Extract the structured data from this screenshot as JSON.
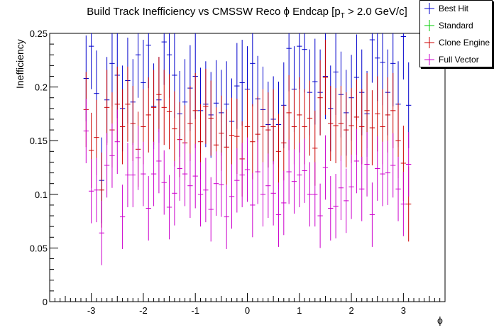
{
  "chart_data": {
    "type": "scatter",
    "title": "Build Track Inefficiency vs CMSSW Reco ϕ Endcap [p",
    "title_sub": "T",
    "title_end": " > 2.0 GeV/c]",
    "xlabel": "ϕ",
    "ylabel": "Inefficiency",
    "xlim": [
      -3.8,
      3.8
    ],
    "ylim": [
      0,
      0.25
    ],
    "xticks": [
      -3,
      -2,
      -1,
      0,
      1,
      2,
      3
    ],
    "xtick_labels": [
      "-3",
      "-2",
      "-1",
      "0",
      "1",
      "2",
      "3"
    ],
    "yticks": [
      0,
      0.05,
      0.1,
      0.15,
      0.2,
      0.25
    ],
    "ytick_labels": [
      "0",
      "0.05",
      "0.1",
      "0.15",
      "0.2",
      "0.25"
    ],
    "grid": false,
    "legend_position": "top-right",
    "x": [
      -3.1,
      -3.0,
      -2.9,
      -2.8,
      -2.7,
      -2.6,
      -2.5,
      -2.4,
      -2.3,
      -2.2,
      -2.1,
      -2.0,
      -1.9,
      -1.8,
      -1.7,
      -1.6,
      -1.5,
      -1.4,
      -1.3,
      -1.2,
      -1.1,
      -1.0,
      -0.9,
      -0.8,
      -0.7,
      -0.6,
      -0.5,
      -0.4,
      -0.3,
      -0.2,
      -0.1,
      0.0,
      0.1,
      0.2,
      0.3,
      0.4,
      0.5,
      0.6,
      0.7,
      0.8,
      0.9,
      1.0,
      1.1,
      1.2,
      1.3,
      1.4,
      1.5,
      1.6,
      1.7,
      1.8,
      1.9,
      2.0,
      2.1,
      2.2,
      2.3,
      2.4,
      2.5,
      2.6,
      2.7,
      2.8,
      2.9,
      3.0,
      3.1
    ],
    "series": [
      {
        "name": "Best Hit",
        "color": "#0000cc",
        "values": [
          0.208,
          0.238,
          0.194,
          0.113,
          0.188,
          0.222,
          0.211,
          0.18,
          0.206,
          0.186,
          0.23,
          0.204,
          0.239,
          0.182,
          0.188,
          0.242,
          0.23,
          0.211,
          0.175,
          0.186,
          0.199,
          0.21,
          0.178,
          0.184,
          0.174,
          0.185,
          0.176,
          0.184,
          0.168,
          0.201,
          0.204,
          0.198,
          0.222,
          0.189,
          0.179,
          0.165,
          0.17,
          0.165,
          0.183,
          0.236,
          0.198,
          0.238,
          0.235,
          0.195,
          0.205,
          0.195,
          0.21,
          0.18,
          0.214,
          0.193,
          0.176,
          0.19,
          0.209,
          0.195,
          0.175,
          0.244,
          0.227,
          0.223,
          0.195,
          0.222,
          0.184,
          0.247,
          0.183
        ],
        "errors": [
          0.04,
          0.04,
          0.04,
          0.04,
          0.04,
          0.04,
          0.04,
          0.04,
          0.04,
          0.04,
          0.04,
          0.04,
          0.04,
          0.04,
          0.04,
          0.04,
          0.04,
          0.04,
          0.04,
          0.04,
          0.04,
          0.04,
          0.04,
          0.04,
          0.04,
          0.04,
          0.04,
          0.04,
          0.04,
          0.04,
          0.04,
          0.04,
          0.04,
          0.04,
          0.04,
          0.04,
          0.04,
          0.04,
          0.04,
          0.04,
          0.04,
          0.04,
          0.04,
          0.04,
          0.04,
          0.04,
          0.04,
          0.04,
          0.04,
          0.04,
          0.04,
          0.04,
          0.04,
          0.04,
          0.04,
          0.04,
          0.04,
          0.04,
          0.04,
          0.04,
          0.04,
          0.04,
          0.04
        ]
      },
      {
        "name": "Standard",
        "color": "#00cc00",
        "values": [],
        "errors": []
      },
      {
        "name": "Clone Engine",
        "color": "#cc0000",
        "values": [
          0.179,
          0.141,
          0.153,
          0.104,
          0.181,
          0.16,
          0.184,
          0.163,
          0.184,
          0.166,
          0.142,
          0.163,
          0.174,
          0.181,
          0.193,
          0.181,
          0.177,
          0.161,
          0.151,
          0.148,
          0.166,
          0.178,
          0.149,
          0.182,
          0.171,
          0.146,
          0.157,
          0.144,
          0.155,
          0.154,
          0.133,
          0.163,
          0.149,
          0.156,
          0.163,
          0.16,
          0.163,
          0.14,
          0.148,
          0.176,
          0.163,
          0.174,
          0.163,
          0.171,
          0.143,
          0.19,
          0.209,
          0.166,
          0.164,
          0.166,
          0.16,
          0.164,
          0.172,
          0.163,
          0.178,
          0.162,
          0.175,
          0.163,
          0.174,
          0.178,
          0.15,
          0.129,
          0.091
        ],
        "errors": [
          0.035,
          0.035,
          0.035,
          0.035,
          0.035,
          0.035,
          0.035,
          0.035,
          0.035,
          0.035,
          0.035,
          0.035,
          0.035,
          0.035,
          0.035,
          0.035,
          0.035,
          0.035,
          0.035,
          0.035,
          0.035,
          0.035,
          0.035,
          0.035,
          0.035,
          0.035,
          0.035,
          0.035,
          0.035,
          0.035,
          0.035,
          0.035,
          0.035,
          0.035,
          0.035,
          0.035,
          0.035,
          0.035,
          0.035,
          0.035,
          0.035,
          0.035,
          0.035,
          0.035,
          0.035,
          0.035,
          0.035,
          0.035,
          0.035,
          0.035,
          0.035,
          0.035,
          0.035,
          0.035,
          0.035,
          0.035,
          0.035,
          0.035,
          0.035,
          0.035,
          0.035,
          0.035,
          0.035
        ]
      },
      {
        "name": "Full Vector",
        "color": "#cc00cc",
        "values": [
          0.159,
          0.103,
          0.104,
          0.064,
          0.127,
          0.136,
          0.149,
          0.079,
          0.118,
          0.118,
          0.134,
          0.119,
          0.087,
          0.119,
          0.131,
          0.111,
          0.088,
          0.101,
          0.124,
          0.119,
          0.108,
          0.117,
          0.1,
          0.104,
          0.086,
          0.11,
          0.109,
          0.079,
          0.098,
          0.113,
          0.118,
          0.123,
          0.09,
          0.121,
          0.1,
          0.108,
          0.101,
          0.081,
          0.092,
          0.121,
          0.112,
          0.118,
          0.122,
          0.1,
          0.1,
          0.08,
          0.125,
          0.087,
          0.089,
          0.106,
          0.094,
          0.107,
          0.131,
          0.105,
          0.128,
          0.081,
          0.124,
          0.119,
          0.12,
          0.127,
          0.105,
          0.091,
          0.128
        ],
        "errors": [
          0.03,
          0.03,
          0.03,
          0.03,
          0.03,
          0.03,
          0.03,
          0.03,
          0.03,
          0.03,
          0.03,
          0.03,
          0.03,
          0.03,
          0.03,
          0.03,
          0.03,
          0.03,
          0.03,
          0.03,
          0.03,
          0.03,
          0.03,
          0.03,
          0.03,
          0.03,
          0.03,
          0.03,
          0.03,
          0.03,
          0.03,
          0.03,
          0.03,
          0.03,
          0.03,
          0.03,
          0.03,
          0.03,
          0.03,
          0.03,
          0.03,
          0.03,
          0.03,
          0.03,
          0.03,
          0.03,
          0.03,
          0.03,
          0.03,
          0.03,
          0.03,
          0.03,
          0.03,
          0.03,
          0.03,
          0.03,
          0.03,
          0.03,
          0.03,
          0.03,
          0.03,
          0.03,
          0.03
        ]
      }
    ]
  }
}
